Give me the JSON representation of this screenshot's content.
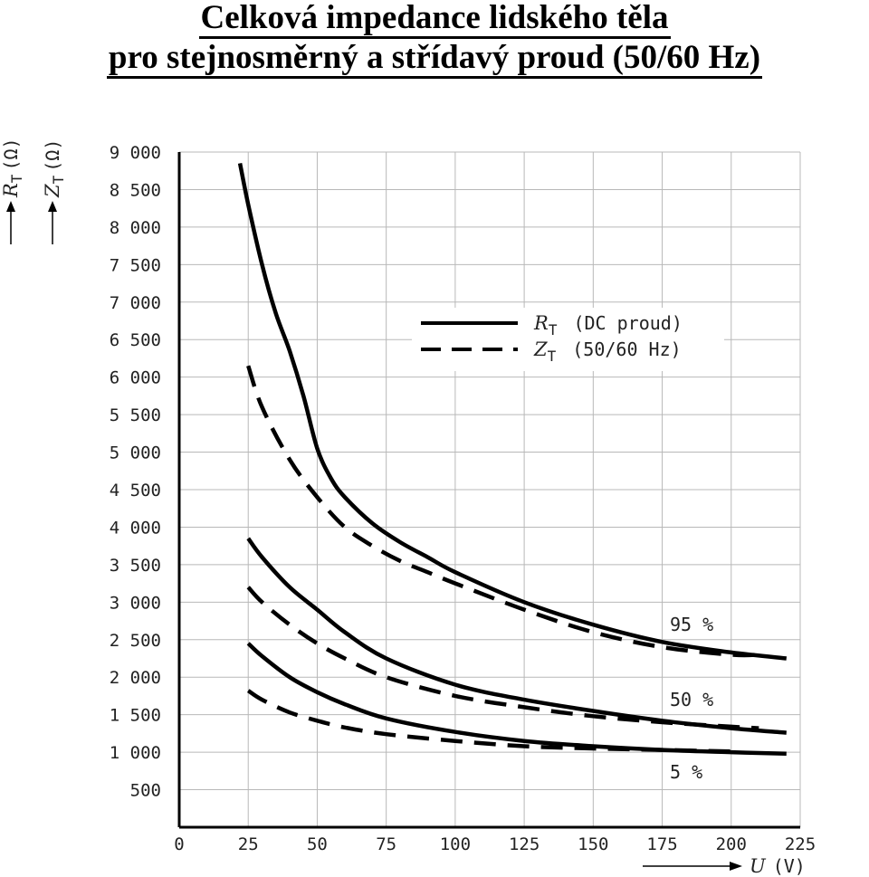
{
  "title": {
    "line1": "Celková impedance lidského těla",
    "line2": "pro stejnosměrný a střídavý proud (50/60 Hz)"
  },
  "chart_data": {
    "type": "line",
    "xlabel": {
      "symbol": "U",
      "unit": "(V)"
    },
    "ylabel": [
      {
        "symbol": "R",
        "sub": "T",
        "unit": "(Ω)"
      },
      {
        "symbol": "Z",
        "sub": "T",
        "unit": "(Ω)"
      }
    ],
    "xlim": [
      0,
      225
    ],
    "ylim": [
      0,
      9000
    ],
    "x_ticks": [
      "0",
      "25",
      "50",
      "75",
      "100",
      "125",
      "150",
      "175",
      "200",
      "225"
    ],
    "y_ticks": [
      "500",
      "1 000",
      "1 500",
      "2 000",
      "2 500",
      "3 000",
      "3 500",
      "4 000",
      "4 500",
      "5 000",
      "5 500",
      "6 000",
      "6 500",
      "7 000",
      "7 500",
      "8 000",
      "8 500",
      "9 000"
    ],
    "grid": true,
    "legend": {
      "placement": "upper-right",
      "entries": [
        {
          "symbol": "R",
          "sub": "T",
          "text": "(DC proud)",
          "style": "solid"
        },
        {
          "symbol": "Z",
          "sub": "T",
          "text": "(50/60 Hz)",
          "style": "dashed"
        }
      ]
    },
    "annotations": [
      "95 %",
      "50 %",
      "5 %"
    ],
    "series": [
      {
        "group": "95 %",
        "style": "solid",
        "x": [
          22,
          25,
          30,
          35,
          40,
          45,
          50,
          55,
          60,
          70,
          80,
          90,
          100,
          125,
          150,
          175,
          200,
          220
        ],
        "y": [
          8850,
          8300,
          7500,
          6850,
          6350,
          5750,
          5050,
          4650,
          4400,
          4050,
          3800,
          3600,
          3400,
          3000,
          2700,
          2470,
          2330,
          2250
        ]
      },
      {
        "group": "95 %",
        "style": "dashed",
        "x": [
          25,
          30,
          40,
          50,
          60,
          70,
          80,
          90,
          100,
          125,
          150,
          175,
          200,
          210
        ],
        "y": [
          6150,
          5600,
          4900,
          4400,
          4000,
          3750,
          3550,
          3400,
          3250,
          2900,
          2600,
          2400,
          2300,
          2300
        ]
      },
      {
        "group": "50 %",
        "style": "solid",
        "x": [
          25,
          30,
          40,
          50,
          60,
          75,
          100,
          125,
          150,
          175,
          200,
          220
        ],
        "y": [
          3850,
          3600,
          3200,
          2900,
          2600,
          2250,
          1900,
          1700,
          1550,
          1420,
          1320,
          1260
        ]
      },
      {
        "group": "50 %",
        "style": "dashed",
        "x": [
          25,
          30,
          40,
          50,
          60,
          75,
          100,
          125,
          150,
          175,
          200,
          210
        ],
        "y": [
          3200,
          3000,
          2700,
          2450,
          2250,
          2000,
          1750,
          1600,
          1480,
          1400,
          1340,
          1320
        ]
      },
      {
        "group": "5 %",
        "style": "solid",
        "x": [
          25,
          30,
          40,
          50,
          60,
          75,
          100,
          125,
          150,
          175,
          200,
          220
        ],
        "y": [
          2450,
          2280,
          2000,
          1800,
          1640,
          1450,
          1270,
          1150,
          1080,
          1030,
          1000,
          980
        ]
      },
      {
        "group": "5 %",
        "style": "dashed",
        "x": [
          25,
          30,
          40,
          50,
          60,
          75,
          100,
          125,
          150,
          175,
          200
        ],
        "y": [
          1820,
          1700,
          1530,
          1420,
          1330,
          1240,
          1150,
          1080,
          1050,
          1030,
          1010
        ]
      }
    ]
  }
}
